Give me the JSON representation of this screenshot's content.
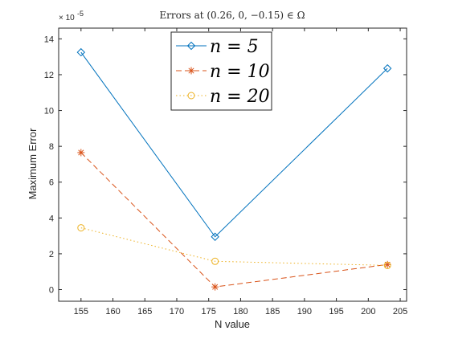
{
  "chart_data": {
    "type": "line",
    "title": "Errors at (0.26, 0, −0.15) ∈ Ω",
    "xlabel": "N value",
    "ylabel": "Maximum Error",
    "y_exponent_base": "× 10",
    "y_exponent_power": "-5",
    "xlim": [
      151.5,
      206
    ],
    "ylim": [
      -0.65,
      14.6
    ],
    "xticks": [
      155,
      160,
      165,
      170,
      175,
      180,
      185,
      190,
      195,
      200,
      205
    ],
    "yticks": [
      0,
      2,
      4,
      6,
      8,
      10,
      12,
      14
    ],
    "grid": false,
    "legend_position": "top-center",
    "series": [
      {
        "name": "n = 5",
        "legend_label": "n = 5",
        "color": "#0072BD",
        "line_style": "solid",
        "marker": "diamond",
        "x": [
          155,
          176,
          203
        ],
        "y": [
          13.25,
          2.95,
          12.35
        ]
      },
      {
        "name": "n = 10",
        "legend_label": "n = 10",
        "color": "#D95319",
        "line_style": "dashed",
        "marker": "asterisk",
        "x": [
          155,
          176,
          203
        ],
        "y": [
          7.65,
          0.15,
          1.4
        ]
      },
      {
        "name": "n = 20",
        "legend_label": "n = 20",
        "color": "#EDB120",
        "line_style": "dotted",
        "marker": "circle",
        "x": [
          155,
          176,
          203
        ],
        "y": [
          3.45,
          1.58,
          1.35
        ]
      }
    ]
  }
}
